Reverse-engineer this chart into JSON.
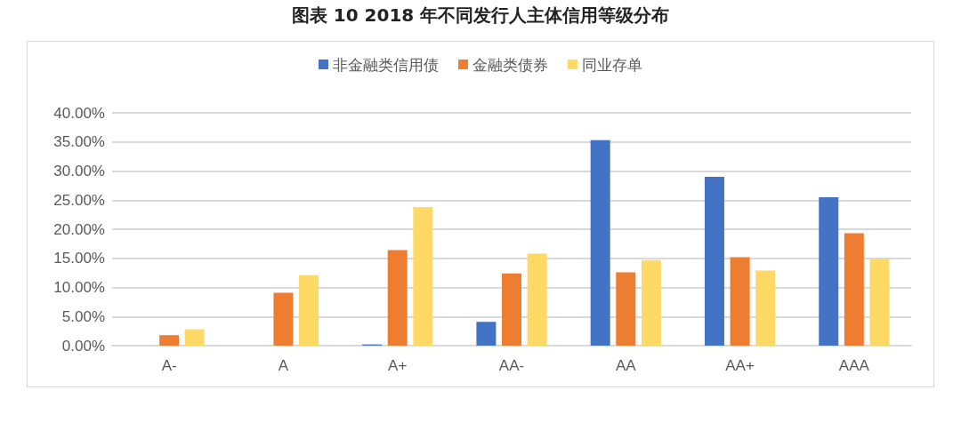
{
  "chart_data": {
    "type": "bar",
    "title": "图表 10 2018 年不同发行人主体信用等级分布",
    "categories": [
      "A-",
      "A",
      "A+",
      "AA-",
      "AA",
      "AA+",
      "AAA"
    ],
    "series": [
      {
        "name": "非金融类信用债",
        "color": "#4472c4",
        "values": [
          0,
          0,
          0.2,
          4.1,
          35.3,
          29.0,
          25.5
        ]
      },
      {
        "name": "金融类债券",
        "color": "#ed7d31",
        "values": [
          1.8,
          9.1,
          16.4,
          12.4,
          12.6,
          15.2,
          19.3
        ]
      },
      {
        "name": "同业存单",
        "color": "#ffd966",
        "values": [
          2.8,
          12.1,
          23.8,
          15.8,
          14.7,
          12.9,
          14.9
        ]
      }
    ],
    "ylim": [
      0,
      40
    ],
    "yticks": [
      {
        "value": 0,
        "label": "0.00%"
      },
      {
        "value": 5,
        "label": "5.00%"
      },
      {
        "value": 10,
        "label": "10.00%"
      },
      {
        "value": 15,
        "label": "15.00%"
      },
      {
        "value": 20,
        "label": "20.00%"
      },
      {
        "value": 25,
        "label": "25.00%"
      },
      {
        "value": 30,
        "label": "30.00%"
      },
      {
        "value": 35,
        "label": "35.00%"
      },
      {
        "value": 40,
        "label": "40.00%"
      }
    ],
    "grid": "y",
    "legend": "top"
  }
}
